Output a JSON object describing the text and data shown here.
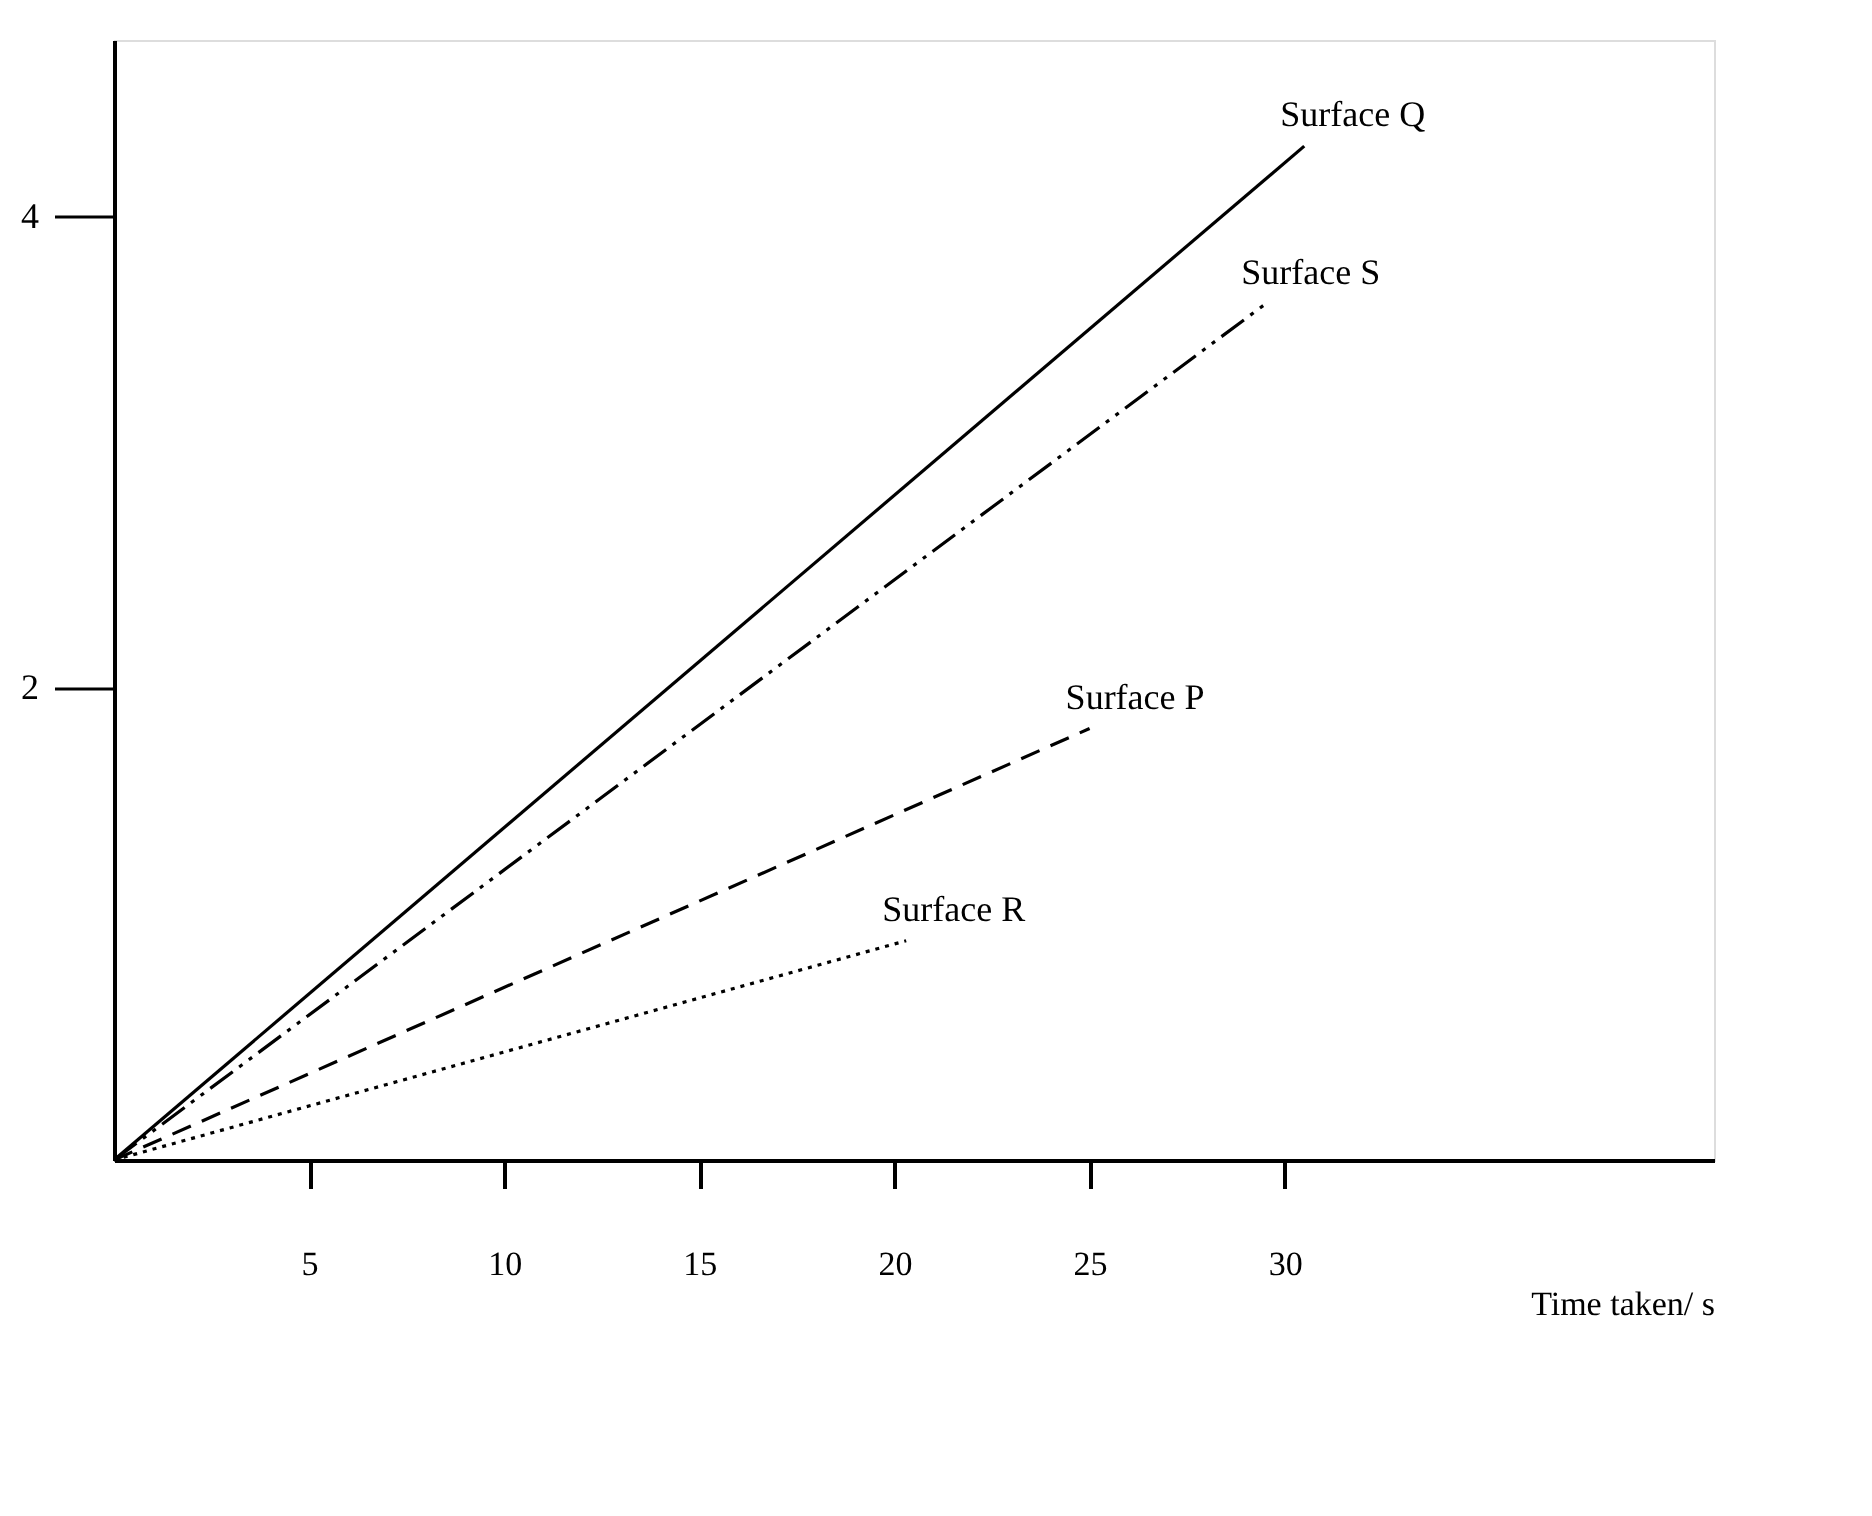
{
  "chart_data": {
    "type": "line",
    "xlabel": "Time taken/ s",
    "xlim": [
      0,
      41
    ],
    "ylim": [
      0,
      4.75
    ],
    "xticks": [
      5,
      10,
      15,
      20,
      25,
      30
    ],
    "yticks": [
      2,
      4
    ],
    "grid": false,
    "marker": "none",
    "series": [
      {
        "name": "Surface Q",
        "color": "#000000",
        "line_style": "solid",
        "x": [
          0,
          30.5
        ],
        "values": [
          0,
          4.3
        ]
      },
      {
        "name": "Surface S",
        "color": "#000000",
        "line_style": "dashdot",
        "x": [
          0,
          29.5
        ],
        "values": [
          0,
          3.63
        ]
      },
      {
        "name": "Surface P",
        "color": "#000000",
        "line_style": "dashed",
        "x": [
          0,
          25
        ],
        "values": [
          0,
          1.83
        ]
      },
      {
        "name": "Surface R",
        "color": "#000000",
        "line_style": "dotted",
        "x": [
          0,
          20.3
        ],
        "values": [
          0,
          0.93
        ]
      }
    ]
  }
}
